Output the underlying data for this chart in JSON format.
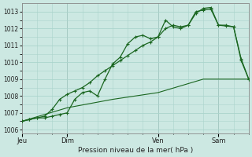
{
  "background_color": "#cce8e2",
  "grid_color": "#aad4cc",
  "plot_bg": "#cce8e2",
  "line_color": "#1a6620",
  "marker_color": "#1a6620",
  "xlabel": "Pression niveau de la mer( hPa )",
  "ylim": [
    1005.8,
    1013.5
  ],
  "yticks": [
    1006,
    1007,
    1008,
    1009,
    1010,
    1011,
    1012,
    1013
  ],
  "day_labels": [
    "Jeu",
    "Dim",
    "Ven",
    "Sam"
  ],
  "day_positions": [
    0,
    24,
    72,
    104
  ],
  "xlim": [
    0,
    120
  ],
  "vline_positions": [
    0,
    24,
    72,
    104
  ],
  "line1_x": [
    0,
    4,
    8,
    12,
    16,
    20,
    24,
    28,
    32,
    36,
    40,
    44,
    48,
    52,
    56,
    60,
    64,
    68,
    72,
    76,
    80,
    84,
    88,
    92,
    96,
    100,
    104,
    108,
    112,
    116,
    120
  ],
  "line1_y": [
    1006.5,
    1006.6,
    1006.7,
    1006.7,
    1006.8,
    1006.9,
    1007.0,
    1007.8,
    1008.2,
    1008.3,
    1008.0,
    1009.0,
    1009.9,
    1010.3,
    1011.1,
    1011.5,
    1011.6,
    1011.4,
    1011.5,
    1012.5,
    1012.1,
    1012.0,
    1012.2,
    1013.0,
    1013.1,
    1013.15,
    1012.2,
    1012.15,
    1012.1,
    1010.1,
    1009.0
  ],
  "line2_x": [
    0,
    4,
    8,
    12,
    16,
    20,
    24,
    28,
    32,
    36,
    40,
    44,
    48,
    52,
    56,
    60,
    64,
    68,
    72,
    76,
    80,
    84,
    88,
    92,
    96,
    100,
    104,
    108,
    112,
    116,
    120
  ],
  "line2_y": [
    1006.5,
    1006.6,
    1006.7,
    1006.8,
    1007.2,
    1007.8,
    1008.1,
    1008.3,
    1008.5,
    1008.8,
    1009.2,
    1009.5,
    1009.8,
    1010.1,
    1010.4,
    1010.7,
    1011.0,
    1011.2,
    1011.5,
    1012.0,
    1012.2,
    1012.1,
    1012.2,
    1012.9,
    1013.2,
    1013.25,
    1012.2,
    1012.2,
    1012.1,
    1010.2,
    1009.0
  ],
  "line3_x": [
    0,
    24,
    48,
    72,
    96,
    120
  ],
  "line3_y": [
    1006.5,
    1007.3,
    1007.8,
    1008.2,
    1009.0,
    1009.0
  ],
  "xlabel_fontsize": 6.5,
  "tick_fontsize": 5.5
}
